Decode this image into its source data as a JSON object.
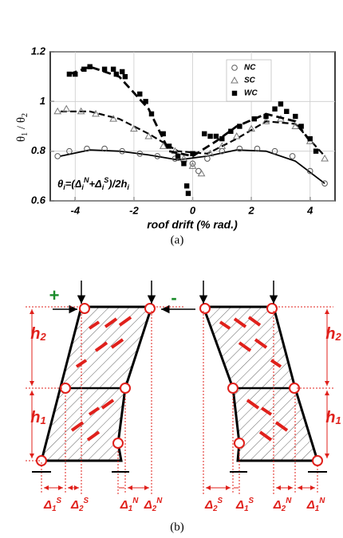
{
  "chart_data": {
    "type": "scatter",
    "y_label": [
      "θ",
      "1",
      " / θ",
      "2"
    ],
    "x_label": "roof drift (% rad.)",
    "caption": "(a)",
    "annotation": [
      "θ",
      "i",
      "=(Δ",
      "i",
      "N",
      "+Δ",
      "i",
      "S",
      ")/2h",
      "i"
    ],
    "xlim": [
      -4.85,
      4.85
    ],
    "ylim": [
      0.6,
      1.2
    ],
    "xticks": [
      -4,
      -2,
      0,
      2,
      4
    ],
    "yticks": [
      0.6,
      0.8,
      1,
      1.2
    ],
    "grid": true,
    "legend": "upper right",
    "series": [
      {
        "name": "NC",
        "marker": "circle",
        "color": "#555555",
        "linestyle": "solid",
        "x": [
          -4.6,
          -4.2,
          -3.6,
          -3.0,
          -2.4,
          -1.8,
          -1.2,
          -0.6,
          -0.3,
          0,
          0.2,
          0.5,
          1.0,
          1.6,
          2.2,
          2.8,
          3.4,
          4.0,
          4.5
        ],
        "values": [
          0.78,
          0.8,
          0.81,
          0.81,
          0.8,
          0.79,
          0.78,
          0.77,
          0.76,
          0.75,
          0.72,
          0.77,
          0.8,
          0.81,
          0.81,
          0.8,
          0.78,
          0.72,
          0.67
        ],
        "curve": {
          "x": [
            -4.5,
            -3.5,
            -2.5,
            -1.5,
            -0.5,
            0.5,
            1.5,
            2.5,
            3.5,
            4.5
          ],
          "values": [
            0.78,
            0.805,
            0.8,
            0.785,
            0.765,
            0.78,
            0.805,
            0.8,
            0.76,
            0.67
          ]
        }
      },
      {
        "name": "SC",
        "marker": "triangle",
        "color": "#777777",
        "linestyle": "dashed",
        "x": [
          -4.6,
          -4.3,
          -3.8,
          -3.3,
          -2.7,
          -2.0,
          -1.5,
          -1.0,
          -0.6,
          -0.3,
          0,
          0.3,
          0.6,
          1.0,
          1.5,
          2.0,
          2.5,
          3.0,
          3.5,
          4.0,
          4.5
        ],
        "values": [
          0.96,
          0.97,
          0.96,
          0.95,
          0.93,
          0.89,
          0.86,
          0.82,
          0.8,
          0.77,
          0.74,
          0.71,
          0.79,
          0.82,
          0.86,
          0.89,
          0.92,
          0.93,
          0.9,
          0.84,
          0.77
        ],
        "curve": {
          "x": [
            -4.5,
            -3.5,
            -2.5,
            -1.5,
            -0.5,
            0.5,
            1.5,
            2.5,
            3.5,
            4.5
          ],
          "values": [
            0.96,
            0.96,
            0.93,
            0.87,
            0.8,
            0.79,
            0.85,
            0.92,
            0.91,
            0.78
          ]
        }
      },
      {
        "name": "WC",
        "marker": "square",
        "color": "#000000",
        "linestyle": "dashed",
        "x": [
          -4.2,
          -4.0,
          -3.7,
          -3.5,
          -3.0,
          -2.7,
          -2.6,
          -2.4,
          -2.3,
          -1.8,
          -1.6,
          -1.4,
          -1.0,
          -0.8,
          -0.5,
          -0.3,
          -0.2,
          -0.15,
          0,
          0.4,
          0.6,
          0.8,
          1.0,
          1.3,
          1.6,
          2.1,
          2.5,
          2.8,
          3.0,
          3.2,
          3.5,
          3.7,
          4.0,
          4.2
        ],
        "values": [
          1.11,
          1.11,
          1.13,
          1.14,
          1.13,
          1.13,
          1.11,
          1.12,
          1.1,
          1.03,
          1.0,
          0.95,
          0.87,
          0.82,
          0.78,
          0.75,
          0.66,
          0.63,
          0.79,
          0.87,
          0.86,
          0.86,
          0.85,
          0.88,
          0.9,
          0.93,
          0.94,
          0.97,
          0.99,
          0.96,
          0.94,
          0.9,
          0.85,
          0.8
        ],
        "curve": {
          "x": [
            -4.2,
            -3.5,
            -2.5,
            -1.5,
            -0.8,
            0,
            0.8,
            1.5,
            2.5,
            3.5,
            4.0
          ],
          "values": [
            1.11,
            1.14,
            1.1,
            0.97,
            0.8,
            0.78,
            0.84,
            0.9,
            0.95,
            0.92,
            0.84
          ]
        }
      }
    ]
  },
  "diagram": {
    "left": {
      "sign": "+",
      "heights": [
        {
          "base": "h",
          "sub": "2"
        },
        {
          "base": "h",
          "sub": "1"
        }
      ],
      "drifts": [
        {
          "base": "Δ",
          "sub": "1",
          "sup": "S"
        },
        {
          "base": "Δ",
          "sub": "2",
          "sup": "S"
        },
        {
          "base": "Δ",
          "sub": "1",
          "sup": "N"
        },
        {
          "base": "Δ",
          "sub": "2",
          "sup": "N"
        }
      ]
    },
    "right": {
      "sign": "-",
      "heights": [
        {
          "base": "h",
          "sub": "2"
        },
        {
          "base": "h",
          "sub": "1"
        }
      ],
      "drifts": [
        {
          "base": "Δ",
          "sub": "2",
          "sup": "S"
        },
        {
          "base": "Δ",
          "sub": "1",
          "sup": "S"
        },
        {
          "base": "Δ",
          "sub": "2",
          "sup": "N"
        },
        {
          "base": "Δ",
          "sub": "1",
          "sup": "N"
        }
      ]
    },
    "caption": "(b)"
  }
}
